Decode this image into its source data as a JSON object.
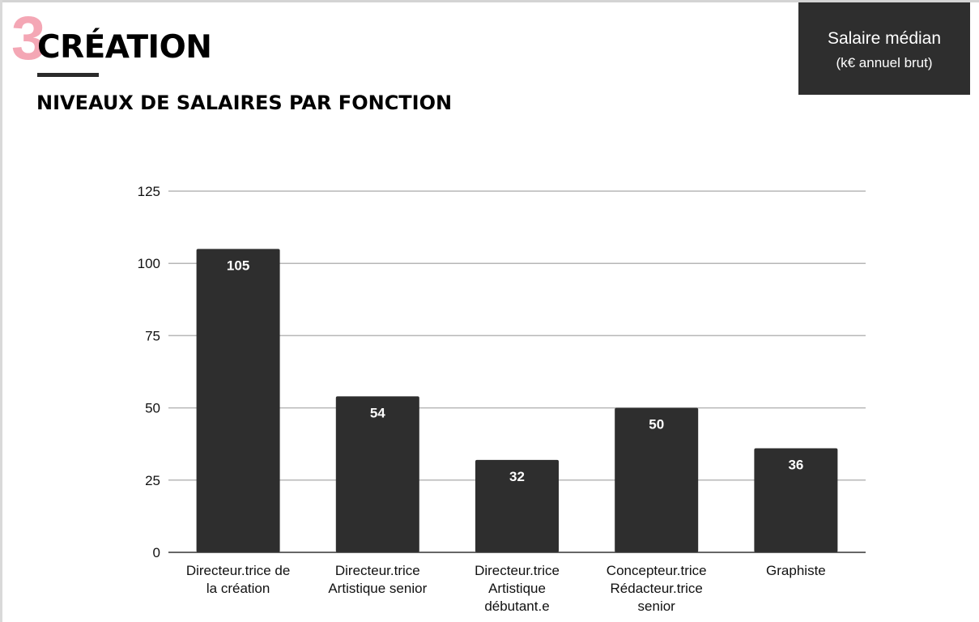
{
  "page": {
    "section_number": "3",
    "section_title": "CRÉATION",
    "subtitle": "NIVEAUX DE SALAIRES PAR FONCTION"
  },
  "legend": {
    "line1": "Salaire médian",
    "line2": "(k€ annuel brut)"
  },
  "colors": {
    "bar": "#2e2e2e",
    "grid": "#b7b7b7",
    "axis": "#333333",
    "accent": "#f4a7b5",
    "label_text": "#ffffff"
  },
  "chart_data": {
    "type": "bar",
    "title": "",
    "xlabel": "",
    "ylabel": "",
    "ylim": [
      0,
      125
    ],
    "y_ticks": [
      0,
      25,
      50,
      75,
      100,
      125
    ],
    "grid": true,
    "categories": [
      [
        "Directeur.trice de",
        "la création"
      ],
      [
        "Directeur.trice",
        "Artistique senior"
      ],
      [
        "Directeur.trice",
        "Artistique",
        "débutant.e"
      ],
      [
        "Concepteur.trice",
        "Rédacteur.trice",
        "senior"
      ],
      [
        "Graphiste"
      ]
    ],
    "values": [
      105,
      54,
      32,
      50,
      36
    ]
  }
}
